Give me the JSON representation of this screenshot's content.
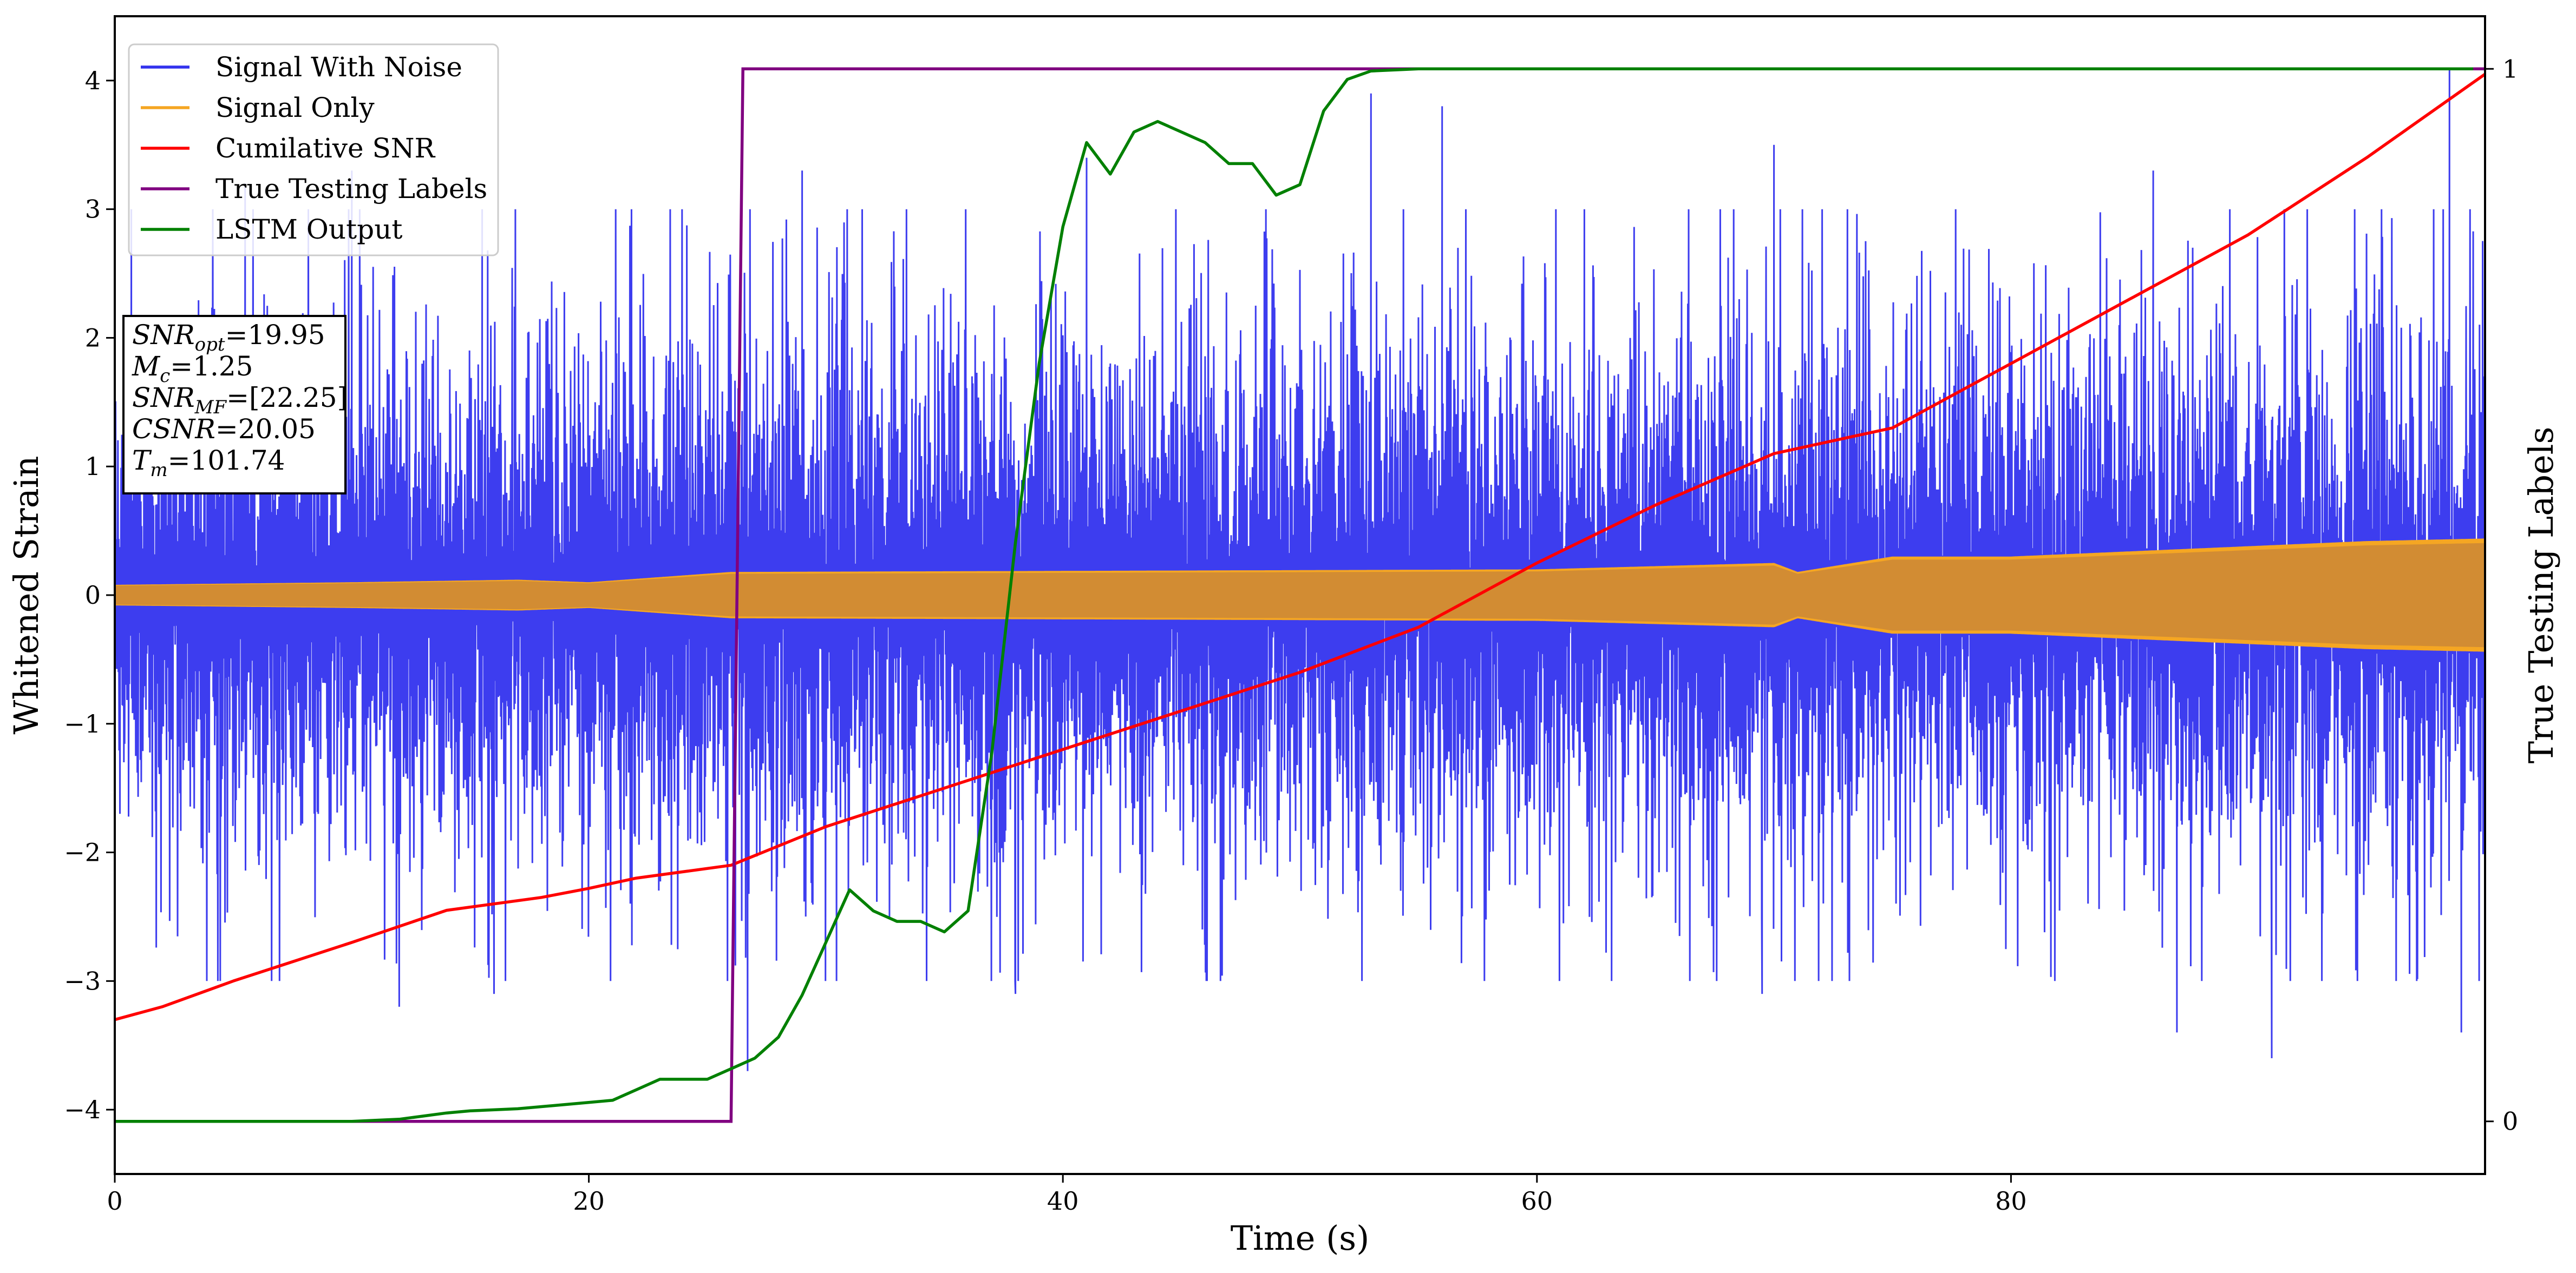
{
  "chart_data": {
    "type": "line",
    "title": "",
    "xlabel": "Time (s)",
    "ylabel": "Whitened Strain",
    "ylabel_right": "True Testing Labels",
    "xlim": [
      0,
      100
    ],
    "ylim": [
      -4.5,
      4.5
    ],
    "ylim_right": [
      -0.05,
      1.05
    ],
    "x_ticks": [
      0,
      20,
      40,
      60,
      80
    ],
    "y_ticks": [
      -4,
      -3,
      -2,
      -1,
      0,
      1,
      2,
      3,
      4
    ],
    "y_ticks_right": [
      0,
      1
    ],
    "grid": false,
    "legend_position": "top-left",
    "series": [
      {
        "name": "Signal With Noise",
        "color": "#3333ee",
        "axis": "left",
        "description": "dense noisy strain centered at 0",
        "envelope": {
          "x": [
            0,
            26,
            60,
            80,
            100
          ],
          "typical_amplitude": [
            1.3,
            1.4,
            1.4,
            1.4,
            1.5
          ]
        },
        "peaks": [
          {
            "x": 0.7,
            "y": 3.0
          },
          {
            "x": 5.5,
            "y": 3.2
          },
          {
            "x": 10.0,
            "y": 3.3
          },
          {
            "x": 15.5,
            "y": 3.0
          },
          {
            "x": 29.0,
            "y": 3.3
          },
          {
            "x": 41.0,
            "y": 3.4
          },
          {
            "x": 53.0,
            "y": 3.9
          },
          {
            "x": 56.0,
            "y": 3.8
          },
          {
            "x": 62.0,
            "y": 3.0
          },
          {
            "x": 70.0,
            "y": 3.5
          },
          {
            "x": 86.0,
            "y": 3.3
          },
          {
            "x": 98.5,
            "y": 4.1
          },
          {
            "x": 12.0,
            "y": -3.2
          },
          {
            "x": 16.0,
            "y": -3.1
          },
          {
            "x": 26.7,
            "y": -3.7
          },
          {
            "x": 38.0,
            "y": -3.1
          },
          {
            "x": 69.5,
            "y": -3.1
          },
          {
            "x": 87.0,
            "y": -3.4
          },
          {
            "x": 91.0,
            "y": -3.6
          },
          {
            "x": 99.0,
            "y": -3.4
          }
        ]
      },
      {
        "name": "Signal Only",
        "color": "#f5a623",
        "axis": "left",
        "description": "chirp oscillation, amplitude grows with time",
        "envelope": {
          "x": [
            0,
            10,
            17,
            20,
            26,
            60,
            70,
            71,
            75,
            80,
            95,
            100
          ],
          "amplitude": [
            0.08,
            0.1,
            0.12,
            0.1,
            0.18,
            0.2,
            0.25,
            0.18,
            0.3,
            0.3,
            0.42,
            0.44
          ]
        }
      },
      {
        "name": "Cumilative SNR",
        "color": "#ff0000",
        "axis": "left",
        "x": [
          0,
          2,
          5,
          10,
          14,
          18,
          20,
          22,
          26,
          30,
          35,
          40,
          45,
          50,
          55,
          60,
          65,
          70,
          75,
          80,
          85,
          90,
          95,
          100
        ],
        "y": [
          -3.3,
          -3.2,
          -3.0,
          -2.7,
          -2.45,
          -2.35,
          -2.28,
          -2.2,
          -2.1,
          -1.8,
          -1.5,
          -1.2,
          -0.9,
          -0.6,
          -0.25,
          0.25,
          0.7,
          1.1,
          1.3,
          1.8,
          2.3,
          2.8,
          3.4,
          4.05
        ]
      },
      {
        "name": "True Testing Labels",
        "color": "#800080",
        "axis": "right",
        "x": [
          0,
          26,
          26.5,
          100
        ],
        "y": [
          0,
          0,
          1,
          1
        ]
      },
      {
        "name": "LSTM Output",
        "color": "#008000",
        "axis": "right",
        "x": [
          0,
          10,
          12,
          14,
          15,
          17,
          19,
          21,
          22,
          23,
          24,
          25,
          26,
          27,
          28,
          29,
          30,
          31,
          32,
          33,
          34,
          35,
          36,
          37,
          38,
          39,
          40,
          41,
          42,
          43,
          44,
          45,
          46,
          47,
          48,
          49,
          50,
          51,
          52,
          53,
          55,
          57,
          60,
          70,
          80,
          90,
          99.5
        ],
        "y": [
          0,
          0,
          0.002,
          0.008,
          0.01,
          0.012,
          0.016,
          0.02,
          0.03,
          0.04,
          0.04,
          0.04,
          0.05,
          0.06,
          0.08,
          0.12,
          0.17,
          0.22,
          0.2,
          0.19,
          0.19,
          0.18,
          0.2,
          0.35,
          0.55,
          0.72,
          0.85,
          0.93,
          0.9,
          0.94,
          0.95,
          0.94,
          0.93,
          0.91,
          0.91,
          0.88,
          0.89,
          0.96,
          0.99,
          0.998,
          1.0,
          1.0,
          1.0,
          1.0,
          1.0,
          1.0,
          1.0
        ]
      }
    ],
    "annotation_box": {
      "location": "upper-left, below legend",
      "lines": [
        {
          "var": "SNR",
          "sub": "opt",
          "value": "=19.95"
        },
        {
          "var": "M",
          "sub": "c",
          "value": "=1.25"
        },
        {
          "var": "SNR",
          "sub": "MF",
          "value": "=[22.25]"
        },
        {
          "var": "CSNR",
          "sub": "",
          "value": "=20.05"
        },
        {
          "var": "T",
          "sub": "m",
          "value": "=101.74"
        }
      ]
    }
  }
}
